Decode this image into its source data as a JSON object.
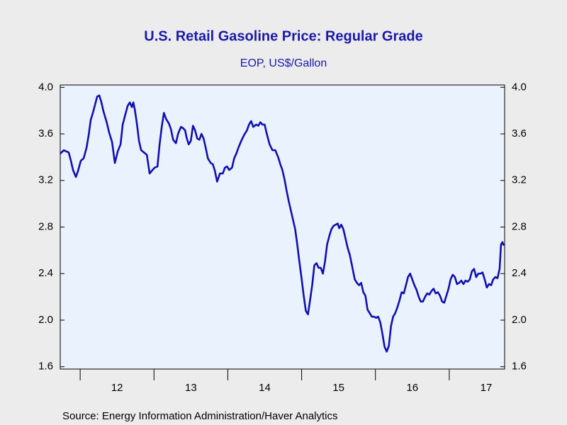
{
  "chart_data": {
    "type": "line",
    "title": "U.S. Retail Gasoline Price: Regular Grade",
    "subtitle": "EOP, US$/Gallon",
    "source": "Source:  Energy Information Administration/Haver Analytics",
    "xlim": [
      2011.73,
      2017.75
    ],
    "xticks": [
      {
        "value": 2012.5,
        "label": "12"
      },
      {
        "value": 2013.5,
        "label": "13"
      },
      {
        "value": 2014.5,
        "label": "14"
      },
      {
        "value": 2015.5,
        "label": "15"
      },
      {
        "value": 2016.5,
        "label": "16"
      },
      {
        "value": 2017.5,
        "label": "17"
      }
    ],
    "ylim": [
      1.58,
      4.02
    ],
    "yticks": [
      {
        "value": 1.6,
        "label": "1.6"
      },
      {
        "value": 2.0,
        "label": "2.0"
      },
      {
        "value": 2.4,
        "label": "2.4"
      },
      {
        "value": 2.8,
        "label": "2.8"
      },
      {
        "value": 3.2,
        "label": "3.2"
      },
      {
        "value": 3.6,
        "label": "3.6"
      },
      {
        "value": 4.0,
        "label": "4.0"
      }
    ],
    "y2lim": [
      1.58,
      4.02
    ],
    "y2ticks": [
      {
        "value": 1.6,
        "label": "1.6"
      },
      {
        "value": 2.0,
        "label": "2.0"
      },
      {
        "value": 2.4,
        "label": "2.4"
      },
      {
        "value": 2.8,
        "label": "2.8"
      },
      {
        "value": 3.2,
        "label": "3.2"
      },
      {
        "value": 3.6,
        "label": "3.6"
      },
      {
        "value": 4.0,
        "label": "4.0"
      }
    ],
    "grid": false,
    "x": [
      2011.73,
      2011.778,
      2011.845,
      2011.874,
      2011.903,
      2011.942,
      2011.97,
      2012.009,
      2012.047,
      2012.086,
      2012.115,
      2012.143,
      2012.172,
      2012.201,
      2012.23,
      2012.259,
      2012.288,
      2012.317,
      2012.355,
      2012.393,
      2012.432,
      2012.47,
      2012.509,
      2012.547,
      2012.576,
      2012.605,
      2012.643,
      2012.672,
      2012.701,
      2012.72,
      2012.74,
      2012.768,
      2012.797,
      2012.826,
      2012.865,
      2012.903,
      2012.941,
      2012.98,
      2013.009,
      2013.047,
      2013.076,
      2013.105,
      2013.134,
      2013.163,
      2013.201,
      2013.23,
      2013.259,
      2013.297,
      2013.326,
      2013.365,
      2013.393,
      2013.422,
      2013.441,
      2013.47,
      2013.499,
      2013.528,
      2013.557,
      2013.586,
      2013.615,
      2013.643,
      2013.672,
      2013.701,
      2013.73,
      2013.768,
      2013.797,
      2013.826,
      2013.855,
      2013.893,
      2013.932,
      2013.961,
      2013.99,
      2014.018,
      2014.057,
      2014.086,
      2014.115,
      2014.143,
      2014.182,
      2014.22,
      2014.259,
      2014.287,
      2014.316,
      2014.345,
      2014.384,
      2014.413,
      2014.441,
      2014.47,
      2014.499,
      2014.528,
      2014.566,
      2014.605,
      2014.643,
      2014.682,
      2014.711,
      2014.739,
      2014.768,
      2014.797,
      2014.826,
      2014.855,
      2014.884,
      2014.913,
      2014.941,
      2014.97,
      2014.999,
      2015.028,
      2015.057,
      2015.086,
      2015.114,
      2015.143,
      2015.172,
      2015.201,
      2015.23,
      2015.259,
      2015.288,
      2015.316,
      2015.345,
      2015.374,
      2015.403,
      2015.432,
      2015.461,
      2015.489,
      2015.509,
      2015.537,
      2015.566,
      2015.595,
      2015.624,
      2015.653,
      2015.682,
      2015.72,
      2015.749,
      2015.778,
      2015.807,
      2015.836,
      2015.864,
      2015.893,
      2015.922,
      2015.951,
      2015.98,
      2016.009,
      2016.037,
      2016.066,
      2016.095,
      2016.124,
      2016.153,
      2016.182,
      2016.211,
      2016.239,
      2016.268,
      2016.297,
      2016.326,
      2016.355,
      2016.384,
      2016.413,
      2016.441,
      2016.47,
      2016.499,
      2016.528,
      2016.557,
      2016.586,
      2016.614,
      2016.643,
      2016.672,
      2016.701,
      2016.73,
      2016.759,
      2016.788,
      2016.816,
      2016.845,
      2016.874,
      2016.903,
      2016.932,
      2016.961,
      2016.99,
      2017.018,
      2017.047,
      2017.076,
      2017.105,
      2017.134,
      2017.163,
      2017.192,
      2017.22,
      2017.249,
      2017.278,
      2017.307,
      2017.336,
      2017.365,
      2017.394,
      2017.422,
      2017.451,
      2017.48,
      2017.509,
      2017.538,
      2017.567,
      2017.595,
      2017.624,
      2017.653,
      2017.682,
      2017.701,
      2017.72,
      2017.74
    ],
    "series": [
      {
        "name": "Regular Grade",
        "color": "#1010b0",
        "values": [
          3.43,
          3.46,
          3.44,
          3.37,
          3.29,
          3.23,
          3.28,
          3.37,
          3.39,
          3.48,
          3.59,
          3.72,
          3.78,
          3.85,
          3.92,
          3.93,
          3.87,
          3.79,
          3.71,
          3.61,
          3.53,
          3.35,
          3.45,
          3.51,
          3.68,
          3.75,
          3.84,
          3.87,
          3.83,
          3.87,
          3.81,
          3.69,
          3.54,
          3.46,
          3.44,
          3.42,
          3.26,
          3.29,
          3.31,
          3.32,
          3.51,
          3.66,
          3.78,
          3.73,
          3.69,
          3.64,
          3.55,
          3.52,
          3.6,
          3.66,
          3.65,
          3.63,
          3.57,
          3.51,
          3.54,
          3.67,
          3.63,
          3.56,
          3.55,
          3.6,
          3.56,
          3.48,
          3.39,
          3.35,
          3.34,
          3.28,
          3.19,
          3.26,
          3.26,
          3.31,
          3.32,
          3.29,
          3.31,
          3.39,
          3.43,
          3.48,
          3.54,
          3.59,
          3.63,
          3.68,
          3.71,
          3.66,
          3.68,
          3.67,
          3.7,
          3.68,
          3.68,
          3.6,
          3.51,
          3.46,
          3.46,
          3.4,
          3.34,
          3.29,
          3.21,
          3.11,
          3.02,
          2.94,
          2.86,
          2.78,
          2.65,
          2.5,
          2.36,
          2.21,
          2.08,
          2.05,
          2.17,
          2.3,
          2.47,
          2.49,
          2.45,
          2.45,
          2.4,
          2.5,
          2.65,
          2.72,
          2.78,
          2.81,
          2.82,
          2.83,
          2.79,
          2.82,
          2.78,
          2.7,
          2.62,
          2.56,
          2.47,
          2.35,
          2.32,
          2.3,
          2.32,
          2.24,
          2.21,
          2.09,
          2.06,
          2.03,
          2.03,
          2.02,
          2.03,
          1.98,
          1.88,
          1.77,
          1.73,
          1.78,
          1.95,
          2.03,
          2.06,
          2.11,
          2.17,
          2.24,
          2.23,
          2.3,
          2.37,
          2.4,
          2.35,
          2.3,
          2.26,
          2.2,
          2.16,
          2.16,
          2.2,
          2.23,
          2.22,
          2.25,
          2.27,
          2.23,
          2.24,
          2.21,
          2.16,
          2.15,
          2.21,
          2.27,
          2.35,
          2.39,
          2.37,
          2.31,
          2.32,
          2.34,
          2.31,
          2.34,
          2.33,
          2.35,
          2.42,
          2.44,
          2.37,
          2.4,
          2.4,
          2.41,
          2.35,
          2.28,
          2.31,
          2.3,
          2.35,
          2.37,
          2.36,
          2.44,
          2.65,
          2.67,
          2.64
        ]
      }
    ]
  }
}
